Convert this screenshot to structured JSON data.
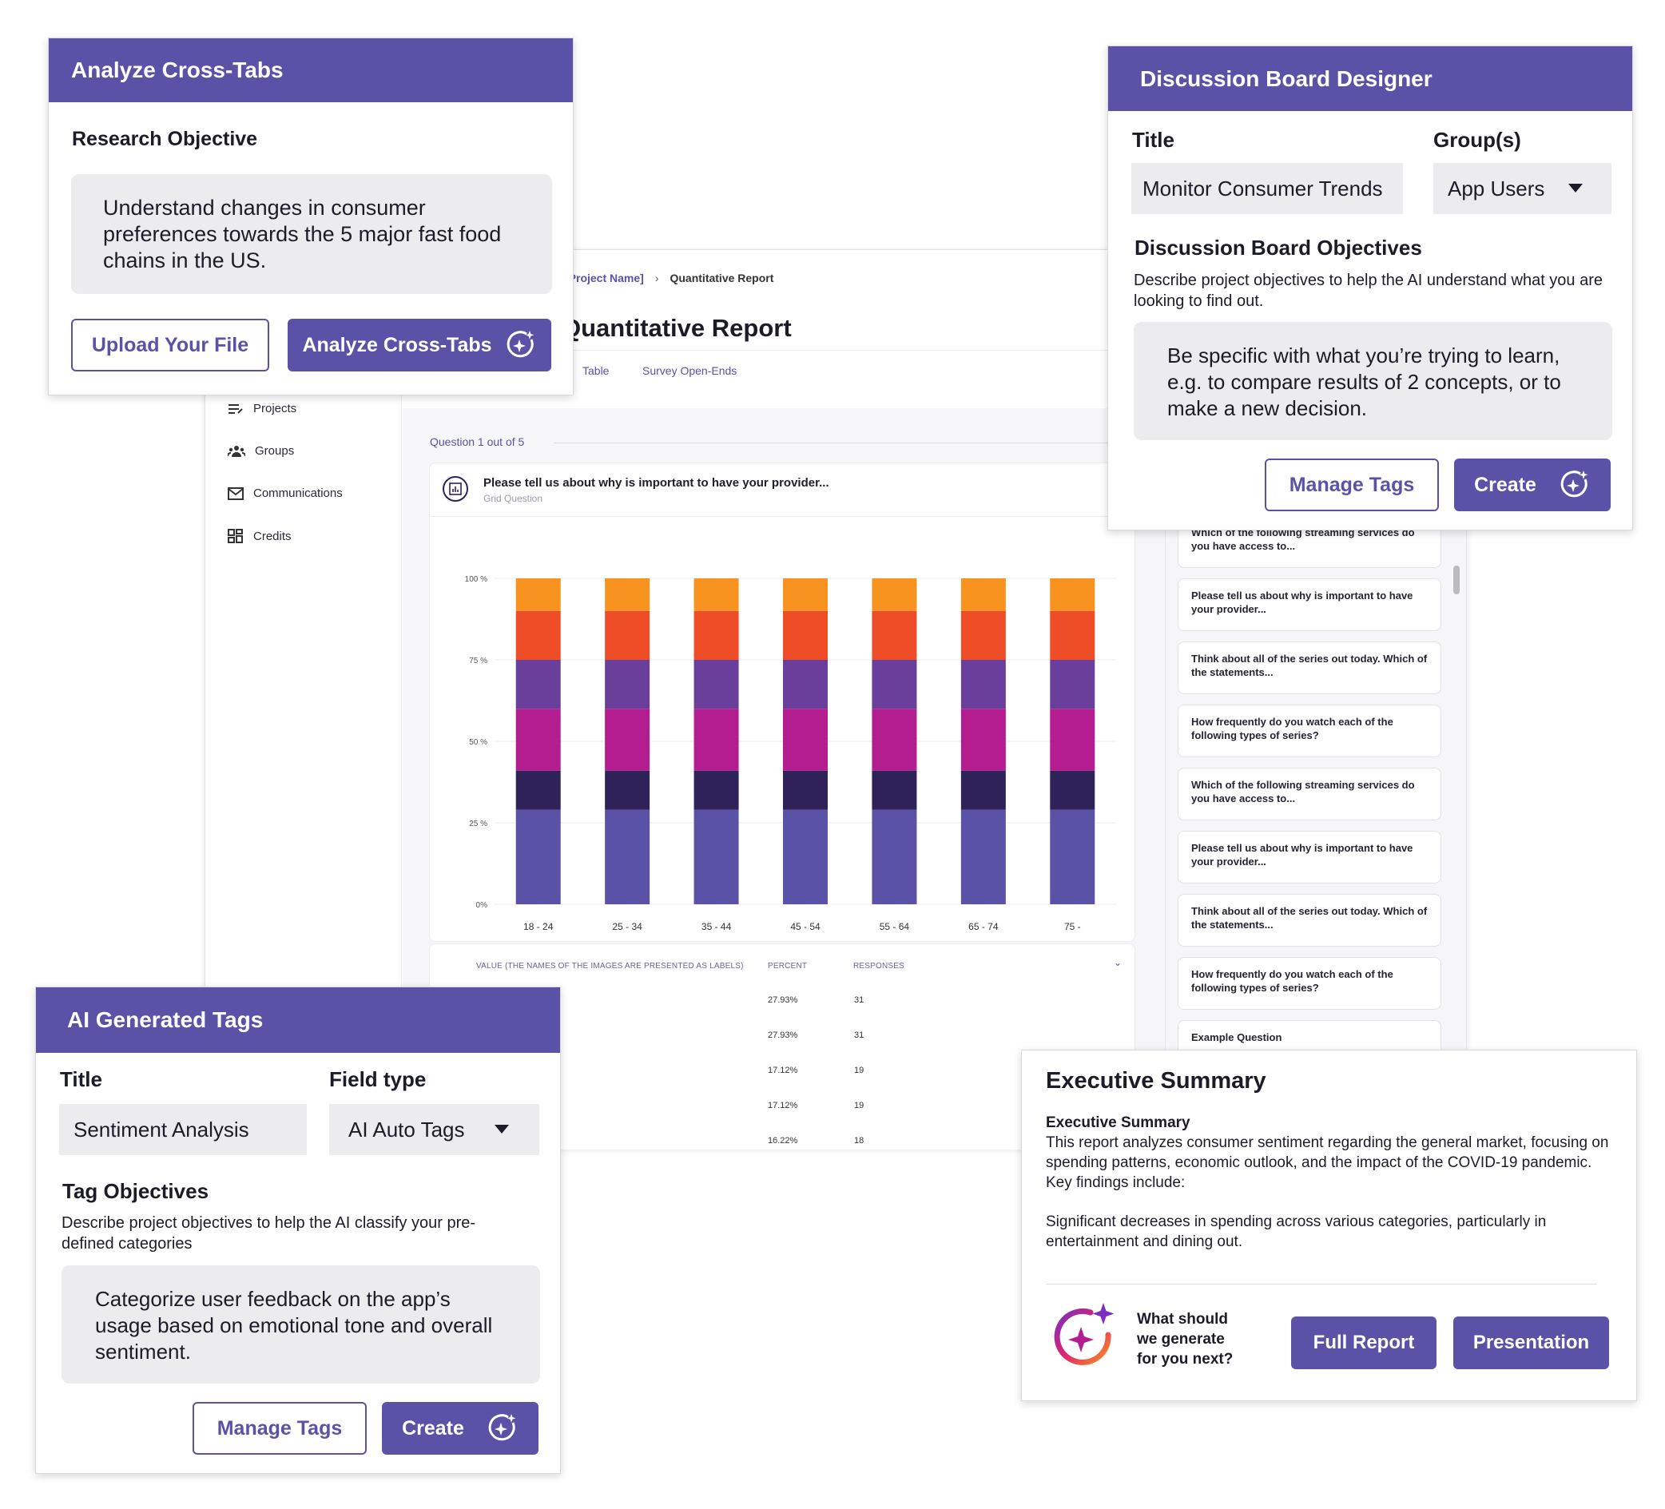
{
  "report": {
    "breadcrumb_project": "[Project Name]",
    "breadcrumb_current": "Quantitative Report",
    "title": "Quantitative Report",
    "tabs": [
      "Table",
      "Survey Open-Ends"
    ],
    "sidebar": [
      "Projects",
      "Groups",
      "Communications",
      "Credits"
    ],
    "question_counter": "Question 1 out of 5",
    "question_title": "Please tell us about why is important to have your provider...",
    "question_type": "Grid Question",
    "table_headers": [
      "VALUE (THE NAMES OF THE IMAGES ARE PRESENTED AS LABELS)",
      "PERCENT",
      "RESPONSES"
    ],
    "table_rows": [
      {
        "percent": "27.93%",
        "responses": "31"
      },
      {
        "percent": "27.93%",
        "responses": "31"
      },
      {
        "percent": "17.12%",
        "responses": "19"
      },
      {
        "percent": "17.12%",
        "responses": "19"
      },
      {
        "percent": "16.22%",
        "responses": "18"
      }
    ],
    "question_list": [
      "Which of the following streaming services do you have access to...",
      "Please tell us about why is important to have your provider...",
      "Think about all of the series out today. Which of the statements...",
      "How frequently do you watch each of the following types of series?",
      "Which of the following streaming services do you have access to...",
      "Please tell us about why is important to have your provider...",
      "Think about all of the series out today. Which of the statements...",
      "How frequently do you watch each of the following types of series?",
      "Example Question"
    ]
  },
  "chart_data": {
    "type": "bar",
    "stacked": true,
    "categories": [
      "18 - 24",
      "25 - 34",
      "35 - 44",
      "45 - 54",
      "55 - 64",
      "65 - 74",
      "75 -"
    ],
    "y_ticks": [
      "100 %",
      "75 %",
      "50 %",
      "25 %",
      "0%"
    ],
    "ylim": [
      0,
      100
    ],
    "series": [
      {
        "color": "#5a52a6",
        "values": [
          29,
          29,
          29,
          29,
          29,
          29,
          29
        ]
      },
      {
        "color": "#2e2258",
        "values": [
          12,
          12,
          12,
          12,
          12,
          12,
          12
        ]
      },
      {
        "color": "#b31d8f",
        "values": [
          19,
          19,
          19,
          19,
          19,
          19,
          19
        ]
      },
      {
        "color": "#6a3f9b",
        "values": [
          15,
          15,
          15,
          15,
          15,
          15,
          15
        ]
      },
      {
        "color": "#ef4d28",
        "values": [
          15,
          15,
          15,
          15,
          15,
          15,
          15
        ]
      },
      {
        "color": "#f7931e",
        "values": [
          10,
          10,
          10,
          10,
          10,
          10,
          10
        ]
      }
    ]
  },
  "cross_tabs": {
    "header": "Analyze Cross-Tabs",
    "objective_label": "Research Objective",
    "objective_text": "Understand changes in consumer preferences towards the 5 major fast food chains in the US.",
    "upload_label": "Upload Your File",
    "analyze_label": "Analyze Cross-Tabs"
  },
  "discussion": {
    "header": "Discussion Board Designer",
    "title_label": "Title",
    "title_value": "Monitor Consumer Trends",
    "groups_label": "Group(s)",
    "groups_value": "App Users",
    "objectives_label": "Discussion Board Objectives",
    "objectives_desc": "Describe project objectives to help the AI understand what you are looking to find out.",
    "objectives_placeholder": "Be specific with what you’re trying to learn, e.g. to compare results of 2 concepts, or to make a new decision.",
    "manage_tags_label": "Manage Tags",
    "create_label": "Create"
  },
  "ai_tags": {
    "header": "AI Generated Tags",
    "title_label": "Title",
    "title_value": "Sentiment Analysis",
    "field_type_label": "Field type",
    "field_type_value": "AI Auto Tags",
    "objectives_label": "Tag Objectives",
    "objectives_desc": "Describe project objectives to help the AI classify your pre-defined categories",
    "objectives_text": "Categorize user feedback on the app’s usage based on emotional tone and overall sentiment.",
    "manage_tags_label": "Manage Tags",
    "create_label": "Create"
  },
  "exec_summary": {
    "header": "Executive Summary",
    "sub_label": "Executive Summary",
    "paragraph1": "This report analyzes consumer sentiment regarding the general market, focusing on spending patterns, economic outlook, and the impact of the COVID-19 pandemic. Key findings include:",
    "paragraph2": "Significant decreases in spending across various categories, particularly in entertainment and dining out.",
    "prompt": "What should we generate for you next?",
    "full_report_label": "Full Report",
    "presentation_label": "Presentation"
  }
}
